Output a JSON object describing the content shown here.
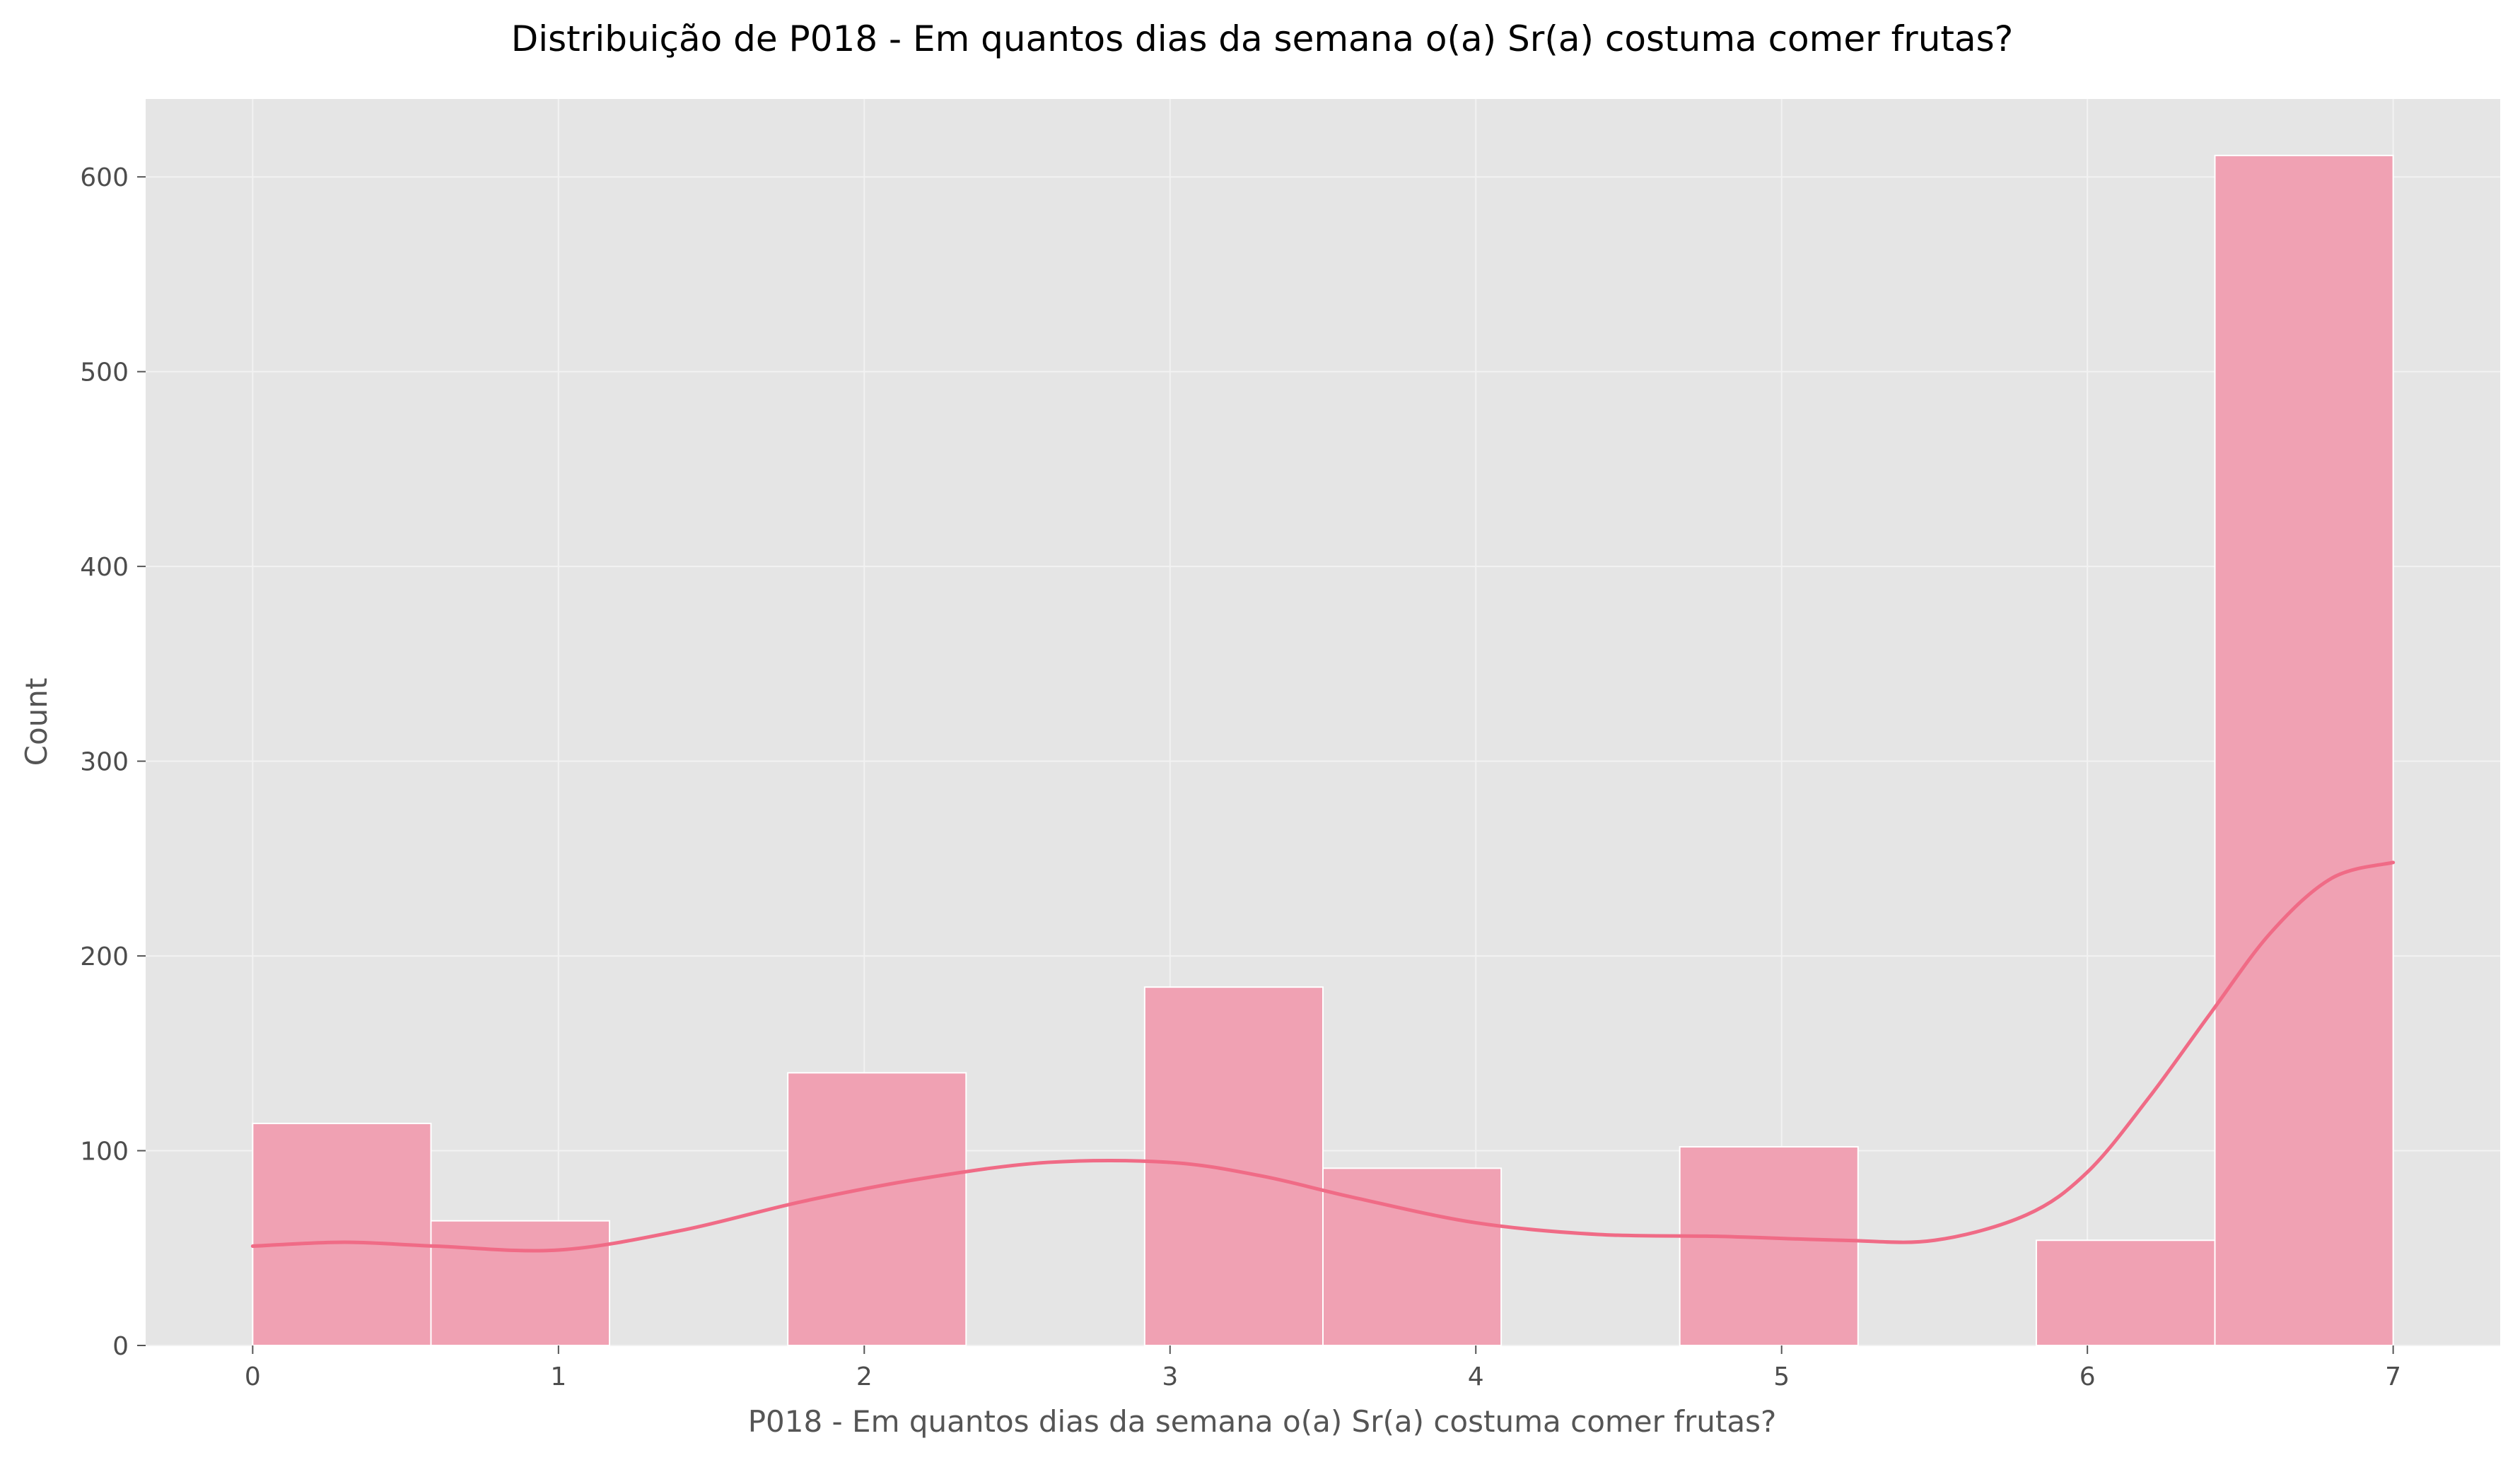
{
  "chart_data": {
    "type": "bar",
    "subtype": "histogram-with-kde",
    "title": "Distribuição de P018 - Em quantos dias da semana o(a) Sr(a) costuma comer frutas?",
    "xlabel": "P018 - Em quantos dias da semana o(a) Sr(a) costuma comer frutas?",
    "ylabel": "Count",
    "xlim": [
      -0.35,
      7.35
    ],
    "ylim": [
      0,
      640
    ],
    "xticks": [
      "0",
      "1",
      "2",
      "3",
      "4",
      "5",
      "6",
      "7"
    ],
    "yticks": [
      "0",
      "100",
      "200",
      "300",
      "400",
      "500",
      "600"
    ],
    "grid": true,
    "bar_color": "#f0a1b3",
    "kde_color": "#f06b86",
    "background_color": "#e5e5e5",
    "bins": [
      {
        "start": 0.0,
        "end": 0.583,
        "count": 114
      },
      {
        "start": 0.583,
        "end": 1.167,
        "count": 64
      },
      {
        "start": 1.167,
        "end": 1.75,
        "count": 0
      },
      {
        "start": 1.75,
        "end": 2.333,
        "count": 140
      },
      {
        "start": 2.333,
        "end": 2.917,
        "count": 0
      },
      {
        "start": 2.917,
        "end": 3.5,
        "count": 184
      },
      {
        "start": 3.5,
        "end": 4.083,
        "count": 91
      },
      {
        "start": 4.083,
        "end": 4.667,
        "count": 0
      },
      {
        "start": 4.667,
        "end": 5.25,
        "count": 102
      },
      {
        "start": 5.25,
        "end": 5.833,
        "count": 0
      },
      {
        "start": 5.833,
        "end": 6.417,
        "count": 54
      },
      {
        "start": 6.417,
        "end": 7.0,
        "count": 611
      }
    ],
    "kde": {
      "x": [
        0,
        0.3,
        0.6,
        1.0,
        1.4,
        1.8,
        2.2,
        2.6,
        3.0,
        3.3,
        3.6,
        4.0,
        4.4,
        4.8,
        5.2,
        5.5,
        5.8,
        6.0,
        6.2,
        6.4,
        6.6,
        6.8,
        7.0
      ],
      "y": [
        51,
        53,
        51,
        49,
        59,
        74,
        86,
        94,
        94,
        87,
        76,
        63,
        57,
        56,
        54,
        54,
        67,
        89,
        127,
        170,
        212,
        240,
        248
      ]
    }
  }
}
